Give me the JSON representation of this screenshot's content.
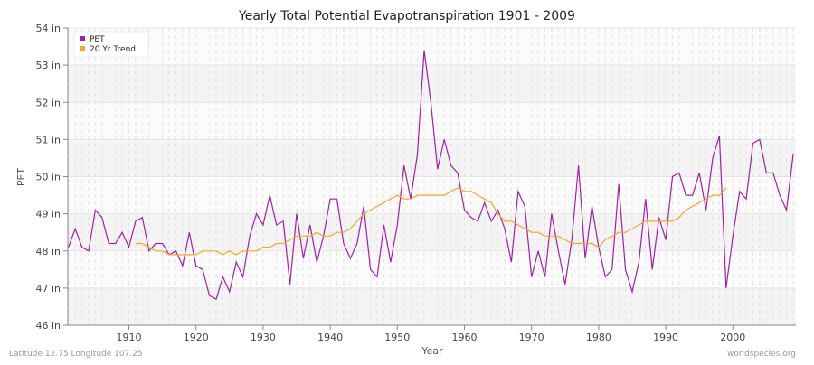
{
  "chart_data": {
    "type": "line",
    "title": "Yearly Total Potential Evapotranspiration 1901 - 2009",
    "xlabel": "Year",
    "ylabel": "PET",
    "xlim": [
      1901,
      2009
    ],
    "ylim": [
      46,
      54
    ],
    "x_ticks": [
      1910,
      1920,
      1930,
      1940,
      1950,
      1960,
      1970,
      1980,
      1990,
      2000
    ],
    "y_ticks": [
      46,
      47,
      48,
      49,
      50,
      51,
      52,
      53,
      54
    ],
    "y_tick_labels": [
      "46 in",
      "47 in",
      "48 in",
      "49 in",
      "50 in",
      "51 in",
      "52 in",
      "53 in",
      "54 in"
    ],
    "grid": true,
    "legend_position": "top-left",
    "series": [
      {
        "name": "PET",
        "color": "#a020a8",
        "x_start": 1901,
        "values": [
          48.1,
          48.6,
          48.1,
          48.0,
          49.1,
          48.9,
          48.2,
          48.2,
          48.5,
          48.1,
          48.8,
          48.9,
          48.0,
          48.2,
          48.2,
          47.9,
          48.0,
          47.6,
          48.5,
          47.6,
          47.5,
          46.8,
          46.7,
          47.3,
          46.9,
          47.7,
          47.3,
          48.4,
          49.0,
          48.7,
          49.5,
          48.7,
          48.8,
          47.1,
          49.0,
          47.8,
          48.7,
          47.7,
          48.4,
          49.4,
          49.4,
          48.2,
          47.8,
          48.2,
          49.2,
          47.5,
          47.3,
          48.7,
          47.7,
          48.7,
          50.3,
          49.4,
          50.6,
          53.4,
          52.0,
          50.2,
          51.0,
          50.3,
          50.1,
          49.1,
          48.9,
          48.8,
          49.3,
          48.8,
          49.1,
          48.6,
          47.7,
          49.6,
          49.2,
          47.3,
          48.0,
          47.3,
          49.0,
          48.0,
          47.1,
          48.3,
          50.3,
          47.8,
          49.2,
          48.1,
          47.3,
          47.5,
          49.8,
          47.5,
          46.9,
          47.7,
          49.4,
          47.5,
          48.9,
          48.3,
          50.0,
          50.1,
          49.5,
          49.5,
          50.1,
          49.1,
          50.5,
          51.1,
          47.0,
          48.4,
          49.6,
          49.4,
          50.9,
          51.0,
          50.1,
          50.1,
          49.5,
          49.1,
          50.6
        ]
      },
      {
        "name": "20 Yr Trend",
        "color": "#f5a623",
        "x_start": 1911,
        "values": [
          48.2,
          48.2,
          48.1,
          48.0,
          48.0,
          47.9,
          47.9,
          47.9,
          47.9,
          47.9,
          48.0,
          48.0,
          48.0,
          47.9,
          48.0,
          47.9,
          48.0,
          48.0,
          48.0,
          48.1,
          48.1,
          48.2,
          48.2,
          48.3,
          48.4,
          48.4,
          48.4,
          48.5,
          48.4,
          48.4,
          48.5,
          48.5,
          48.6,
          48.8,
          49.0,
          49.1,
          49.2,
          49.3,
          49.4,
          49.5,
          49.4,
          49.4,
          49.5,
          49.5,
          49.5,
          49.5,
          49.5,
          49.6,
          49.7,
          49.6,
          49.6,
          49.5,
          49.4,
          49.3,
          49.0,
          48.8,
          48.8,
          48.7,
          48.6,
          48.5,
          48.5,
          48.4,
          48.4,
          48.4,
          48.3,
          48.2,
          48.2,
          48.2,
          48.2,
          48.1,
          48.3,
          48.4,
          48.5,
          48.5,
          48.6,
          48.7,
          48.8,
          48.8,
          48.8,
          48.8,
          48.8,
          48.9,
          49.1,
          49.2,
          49.3,
          49.4,
          49.5,
          49.5,
          49.7
        ]
      }
    ]
  },
  "footer": {
    "location": "Latitude 12.75 Longitude 107.25",
    "source": "worldspecies.org"
  }
}
